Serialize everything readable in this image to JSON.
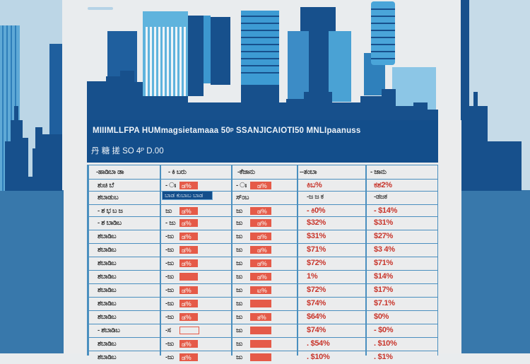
{
  "banner": {
    "line1": "MIIIMLLFPA HUMmagsietamaaa  50ᵖ  SSANJICAIOTI50 MNLIpaanuss",
    "line2": "丹 糖 搓  SO 4ᴾ D.00"
  },
  "table": {
    "headers": [
      "-ಹಾಡಿಬಾ ಡಾ",
      "- ಕಿ ಬರು",
      "-ಕೆಜಾನು",
      "--ತಂಬಾ",
      "- ಜಾನು"
    ],
    "highlight_tag": "ಬಾಡ ಕುಬಾಬ ಬಾಡ",
    "rows": [
      {
        "label": "ಶುಚಿ ಬೆ",
        "c1": "- ಃ",
        "c1_bar": "ಡ%",
        "c2": "- ಃ",
        "c2_bar": "ಡ%",
        "c3": "ಕಿಬ%",
        "c4": "ಕಶ2%"
      },
      {
        "label": "ಶಬಾಡುಬ",
        "c1": "",
        "c1_bar": "",
        "c2": "ಸ್ಂಬ",
        "c2_bar": "",
        "c3": "-ಜ ಜ ಕ",
        "c4": "-ಡಜಕ"
      },
      {
        "label": "- ಶ ಭ ಬ ಜ",
        "c1": "ಜು",
        "c1_bar": "ಡ%",
        "c2": "ಜು",
        "c2_bar": "ಡ%",
        "c3": "- ಕಿ0%",
        "c4": "- $14%"
      },
      {
        "label": "- ಶ ಬಾಡಿಬ",
        "c1": "- ಜು",
        "c1_bar": "ಡ%",
        "c2": "ಜು",
        "c2_bar": "ಡ%",
        "c3": "$32%",
        "c4": "$31%"
      },
      {
        "label": "ಶಬಾಡಿಬ",
        "c1": "-ಜು",
        "c1_bar": "ಡ%",
        "c2": "ಜು",
        "c2_bar": "ಡ%",
        "c3": "$31%",
        "c4": "$27%"
      },
      {
        "label": "ಶಬಾಡಿಬ",
        "c1": "-ಜು",
        "c1_bar": "ಡ%",
        "c2": "ಜು",
        "c2_bar": "ಡ%",
        "c3": "$71%",
        "c4": "$3 4%"
      },
      {
        "label": "ಶಬಾಡಿಬ",
        "c1": "-ಜು",
        "c1_bar": "ಡ%",
        "c2": "ಜು",
        "c2_bar": "ಡ%",
        "c3": "$72%",
        "c4": "$71%"
      },
      {
        "label": "ಶಬಾಡಿಬ",
        "c1": "-ಜು",
        "c1_bar": "",
        "c2": "ಜು",
        "c2_bar": "ಡ%",
        "c3": "1%",
        "c4": "$14%"
      },
      {
        "label": "ಶಬಾಡಿಬ",
        "c1": "-ಜು",
        "c1_bar": "ಡ%",
        "c2": "ಜು",
        "c2_bar": "ಟ%",
        "c3": "$72%",
        "c4": "$17%"
      },
      {
        "label": "ಶಬಾಡಿಬ",
        "c1": "-ಜು",
        "c1_bar": "ಡ%",
        "c2": "ಜು",
        "c2_bar": "",
        "c3": "$74%",
        "c4": "$7.1%"
      },
      {
        "label": "ಶಬಾಡಿಬ",
        "c1": "-ಜು",
        "c1_bar": "ಡ%",
        "c2": "ಜು",
        "c2_bar": "ತ%",
        "c3": "$64%",
        "c4": "$0%"
      },
      {
        "label": "- ಶಬಾಡಿಬ",
        "c1": "-ಸ",
        "c1_bar": "",
        "c2": "ಜು",
        "c2_bar": "",
        "c3": "$74%",
        "c4": "- $0%"
      },
      {
        "label": "ಶಬಾಡಿಬ",
        "c1": "-ಜು",
        "c1_bar": "ಡ%",
        "c2": "ಜು",
        "c2_bar": "",
        "c3": ". $54%",
        "c4": ". $10%"
      },
      {
        "label": "ಶಬಾಡಿಬ",
        "c1": "-ಜು",
        "c1_bar": "ಡ%",
        "c2": "ಜು",
        "c2_bar": "",
        "c3": ". $10%",
        "c4": ". $1%"
      }
    ]
  },
  "colors": {
    "banner": "#134e8b",
    "bar": "#e55a48",
    "grid": "#4a8fbf",
    "value_red": "#c8352b"
  }
}
